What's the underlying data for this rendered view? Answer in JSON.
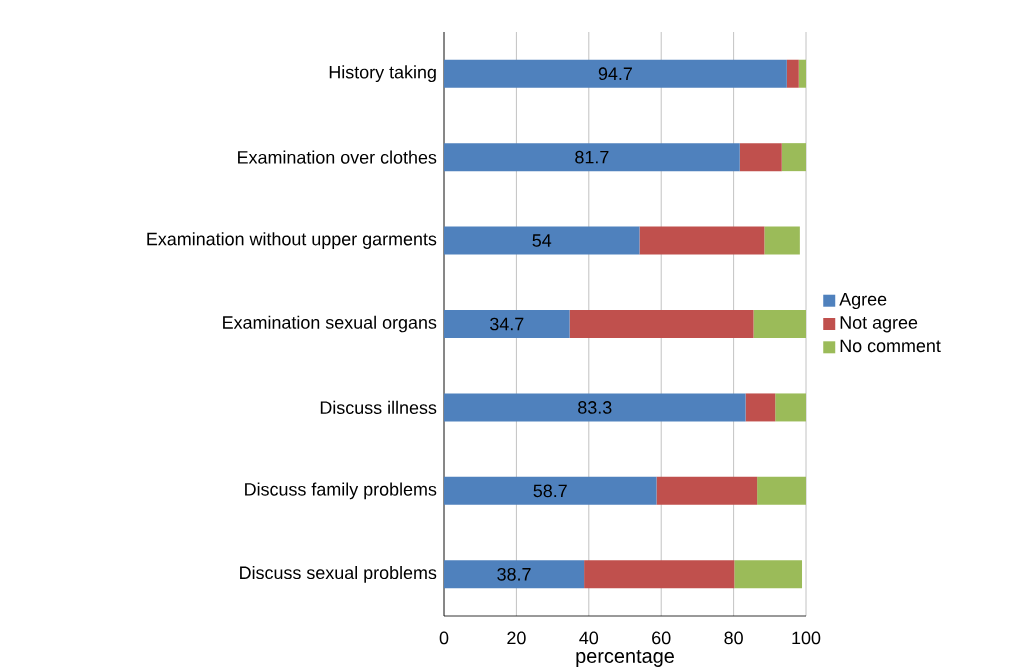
{
  "chart_data": {
    "type": "bar",
    "orientation": "horizontal",
    "stacked": true,
    "xlabel": "percentage",
    "categories": [
      "History taking",
      "Examination over clothes",
      "Examination without upper garments",
      "Examination sexual organs",
      "Discuss illness",
      "Discuss family problems",
      "Discuss sexual problems"
    ],
    "series": [
      {
        "name": "Agree",
        "color": "#4f81bd",
        "values": [
          94.7,
          81.7,
          54,
          34.7,
          83.3,
          58.7,
          38.7
        ],
        "value_labels": [
          "94.7",
          "81.7",
          "54",
          "34.7",
          "83.3",
          "58.7",
          "38.7"
        ]
      },
      {
        "name": "Not agree",
        "color": "#c0504d",
        "values": [
          3.3,
          11.6,
          34.5,
          50.8,
          8.2,
          27.8,
          41.5
        ]
      },
      {
        "name": "No comment",
        "color": "#9bbb59",
        "values": [
          2,
          6.7,
          9.8,
          14.5,
          8.5,
          13.5,
          18.7
        ]
      }
    ],
    "xlim": [
      0,
      100
    ],
    "xticks": [
      0,
      20,
      40,
      60,
      80,
      100
    ],
    "grid": "x",
    "legend": "right"
  }
}
